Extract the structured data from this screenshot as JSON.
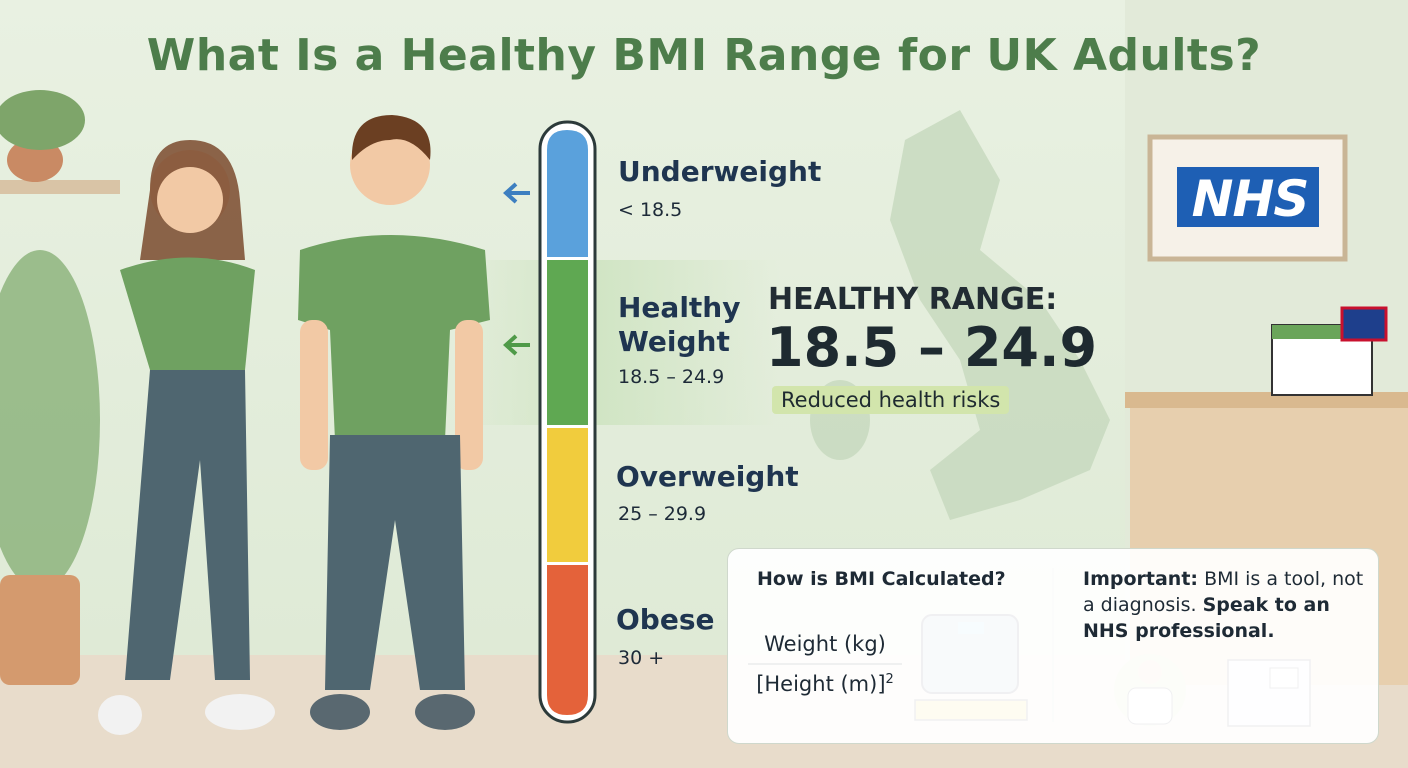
{
  "title": "What Is a Healthy BMI Range for UK Adults?",
  "scale": {
    "categories": [
      {
        "label": "Underweight",
        "range": "< 18.5"
      },
      {
        "label": "Healthy Weight",
        "range": "18.5 – 24.9"
      },
      {
        "label": "Overweight",
        "range": "25 – 29.9"
      },
      {
        "label": "Obese",
        "range": "30 +"
      }
    ]
  },
  "highlight": {
    "heading": "HEALTHY RANGE:",
    "range": "18.5 – 24.9",
    "note": "Reduced health risks"
  },
  "sign": "NHS",
  "info": {
    "calc": {
      "heading": "How is BMI Calculated?",
      "numerator": "Weight (kg)",
      "denominator": "[Height (m)]",
      "exponent": "2"
    },
    "note": {
      "lead": "Important:",
      "body": "BMI is a tool, not a diagnosis.",
      "action": "Speak to an NHS professional."
    }
  }
}
